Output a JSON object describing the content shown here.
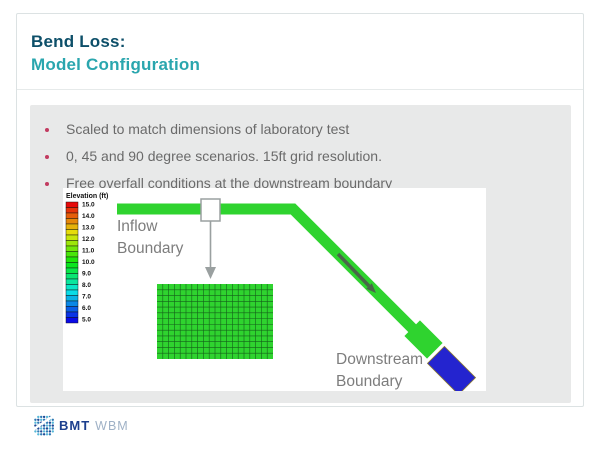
{
  "slide": {
    "title_line1": "Bend Loss:",
    "title_line2": "Model Configuration",
    "title_color": "#0d4f69",
    "subtitle_color": "#2aa6ae",
    "bullet_dot_color": "#c23b60",
    "bullets": [
      "Scaled to match dimensions of laboratory test",
      "0, 45 and 90 degree scenarios. 15ft grid resolution.",
      "Free overfall conditions at the downstream boundary"
    ]
  },
  "figure": {
    "legend": {
      "title": "Elevation (ft)",
      "tick_labels": [
        "15.0",
        "14.0",
        "13.0",
        "12.0",
        "11.0",
        "10.0",
        "9.0",
        "8.0",
        "7.0",
        "6.0",
        "5.0"
      ],
      "cell_count": 22
    },
    "labels": {
      "inflow": [
        "Inflow",
        "Boundary"
      ],
      "downstream": [
        "Downstream",
        "Boundary"
      ]
    },
    "grid": {
      "cols": 20,
      "rows": 13
    },
    "colors": {
      "channel": "#2fd32f",
      "mesh_fill": "#2fd32f",
      "outlet_blue": "#2424cf",
      "grid_line": "#14601a",
      "callout_gray": "#9aa0a0",
      "flow_arrow": "#4e5a4e",
      "label_gray": "#7d7d7d"
    }
  },
  "footer": {
    "brand_bold": "BMT",
    "brand_light": "WBM",
    "brand_navy": "#1c3f8e",
    "brand_light_blue": "#9fb1c6",
    "globe_dot_colors": [
      "#1e4a96",
      "#2f7ab5",
      "#56b8d8"
    ]
  }
}
